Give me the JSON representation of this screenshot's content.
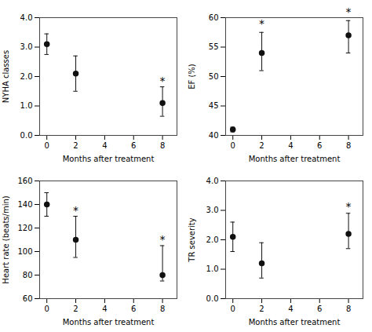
{
  "chart_data": [
    {
      "type": "scatter",
      "xlabel": "Months after treatment",
      "ylabel": "NYHA classes",
      "x": [
        0,
        2,
        8
      ],
      "values": [
        3.1,
        2.1,
        1.1
      ],
      "yerr_low": [
        0.35,
        0.6,
        0.45
      ],
      "yerr_high": [
        0.35,
        0.6,
        0.55
      ],
      "xlim": [
        -0.5,
        9
      ],
      "xticks": [
        0,
        2,
        4,
        6,
        8
      ],
      "ylim": [
        0,
        4
      ],
      "yticks": [
        0,
        1,
        2,
        3,
        4
      ],
      "color": "#111111",
      "marker": "circle",
      "grid": false,
      "annotations": [
        {
          "text": "*",
          "x": 8,
          "y": 1.72
        }
      ]
    },
    {
      "type": "scatter",
      "xlabel": "Months after treatment",
      "ylabel": "EF (%)",
      "x": [
        0,
        2,
        8
      ],
      "values": [
        41.0,
        54.0,
        57.0
      ],
      "yerr_low": [
        0.4,
        3.0,
        3.0
      ],
      "yerr_high": [
        0.4,
        3.5,
        2.5
      ],
      "xlim": [
        -0.5,
        9
      ],
      "xticks": [
        0,
        2,
        4,
        6,
        8
      ],
      "ylim": [
        40,
        60
      ],
      "yticks": [
        40,
        45,
        50,
        55,
        60
      ],
      "color": "#111111",
      "marker": "circle",
      "grid": false,
      "annotations": [
        {
          "text": "*",
          "x": 2,
          "y": 58.3
        },
        {
          "text": "*",
          "x": 8,
          "y": 60.3
        }
      ]
    },
    {
      "type": "scatter",
      "xlabel": "Months after treatment",
      "ylabel": "Heart rate (beats/min)",
      "x": [
        0,
        2,
        8
      ],
      "values": [
        140,
        110,
        80
      ],
      "yerr_low": [
        10,
        15,
        5
      ],
      "yerr_high": [
        10,
        20,
        25
      ],
      "xlim": [
        -0.5,
        9
      ],
      "xticks": [
        0,
        2,
        4,
        6,
        8
      ],
      "ylim": [
        60,
        160
      ],
      "yticks": [
        60,
        80,
        100,
        120,
        140,
        160
      ],
      "color": "#111111",
      "marker": "circle",
      "grid": false,
      "annotations": [
        {
          "text": "*",
          "x": 2,
          "y": 132
        },
        {
          "text": "*",
          "x": 8,
          "y": 107
        }
      ]
    },
    {
      "type": "scatter",
      "xlabel": "Months after treatment",
      "ylabel": "TR severity",
      "x": [
        0,
        2,
        8
      ],
      "values": [
        2.1,
        1.2,
        2.2
      ],
      "yerr_low": [
        0.5,
        0.5,
        0.5
      ],
      "yerr_high": [
        0.5,
        0.7,
        0.7
      ],
      "xlim": [
        -0.5,
        9
      ],
      "xticks": [
        0,
        2,
        4,
        6,
        8
      ],
      "ylim": [
        0,
        4
      ],
      "yticks": [
        0,
        1,
        2,
        3,
        4
      ],
      "color": "#111111",
      "marker": "circle",
      "grid": false,
      "annotations": [
        {
          "text": "*",
          "x": 8,
          "y": 3.0
        }
      ]
    }
  ]
}
